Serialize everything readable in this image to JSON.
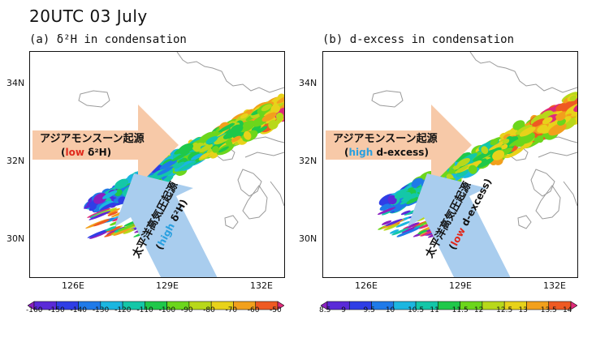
{
  "title": "20UTC  03  July",
  "panels": [
    {
      "label": "(a) δ²H in condensation",
      "arrow_orange_text_1": "アジアモンスーン起源",
      "arrow_orange_text_2_prefix": "(",
      "arrow_orange_text_2_em": "low",
      "arrow_orange_text_2_suffix": " δ²H)",
      "arrow_blue_text_1": "太平洋高気圧起源",
      "arrow_blue_text_2_prefix": "(",
      "arrow_blue_text_2_em": "high",
      "arrow_blue_text_2_suffix": " δ²H)",
      "emphasis_color_orange": "#e0291c",
      "emphasis_color_blue": "#2aa0e0",
      "colorbar_ticks": [
        "-160",
        "-150",
        "-140",
        "-130",
        "-120",
        "-110",
        "-100",
        "-90",
        "-80",
        "-70",
        "-60",
        "-50"
      ]
    },
    {
      "label": "(b) d-excess in condensation",
      "arrow_orange_text_1": "アジアモンスーン起源",
      "arrow_orange_text_2_prefix": "(",
      "arrow_orange_text_2_em": "high",
      "arrow_orange_text_2_suffix": " d-excess)",
      "arrow_blue_text_1": "太平洋高気圧起源",
      "arrow_blue_text_2_prefix": "(",
      "arrow_blue_text_2_em": "low",
      "arrow_blue_text_2_suffix": " d-excess)",
      "emphasis_color_orange": "#2aa0e0",
      "emphasis_color_blue": "#e0291c",
      "colorbar_ticks": [
        "8.5",
        "9",
        "9.5",
        "10",
        "10.5",
        "11",
        "11.5",
        "12",
        "12.5",
        "13",
        "13.5",
        "14"
      ]
    }
  ],
  "lat_labels": [
    "34N",
    "32N",
    "30N"
  ],
  "lon_labels": [
    "126E",
    "129E",
    "132E"
  ],
  "colors": {
    "arrow_orange": "#f7c9a8",
    "arrow_blue": "#a9cdee",
    "coast": "#9a9a9a",
    "palette": [
      "#8a1fc0",
      "#5a2ad8",
      "#2f3ee6",
      "#1f7ae8",
      "#1cb6e0",
      "#14c7a8",
      "#1fc84a",
      "#6cd61c",
      "#b8d81a",
      "#e8d21a",
      "#f2a01c",
      "#ef5a22",
      "#e02a7a"
    ]
  }
}
